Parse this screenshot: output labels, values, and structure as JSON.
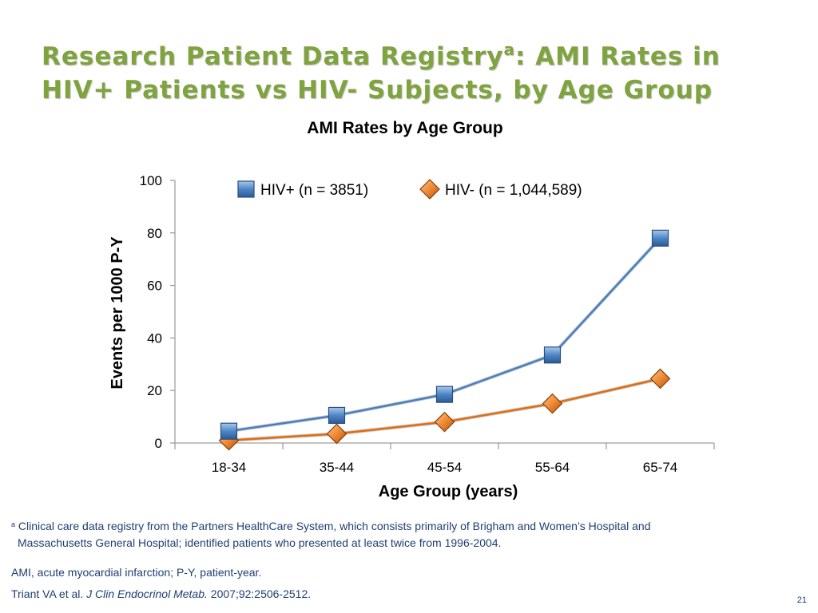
{
  "slide": {
    "title_part1": "Research Patient Data Registry",
    "title_superscript": "a",
    "title_part2": ": AMI Rates in",
    "title_line2": "HIV+ Patients vs HIV- Subjects, by Age Group",
    "footnote_marker": "a",
    "footnote_line1": "Clinical care data registry from the Partners HealthCare System, which consists primarily of Brigham and Women’s Hospital and",
    "footnote_line2": "Massachusetts General Hospital; identified patients who presented at least twice from 1996-2004.",
    "abbreviations": "AMI, acute myocardial infarction; P-Y, patient-year.",
    "citation_authors": "Triant VA et al. ",
    "citation_journal": "J Clin Endocrinol Metab.",
    "citation_details": " 2007;92:2506-2512.",
    "page_number": "21"
  },
  "chart_data": {
    "type": "line",
    "title": "AMI Rates by Age Group",
    "xlabel": "Age Group (years)",
    "ylabel": "Events per 1000 P-Y",
    "categories": [
      "18-34",
      "35-44",
      "45-54",
      "55-64",
      "65-74"
    ],
    "ylim": [
      0,
      100
    ],
    "yticks": [
      0,
      20,
      40,
      60,
      80,
      100
    ],
    "grid": false,
    "legend_position": "top",
    "series": [
      {
        "name": "HIV+ (n = 3851)",
        "values": [
          4.5,
          10.5,
          18.5,
          33.5,
          78
        ],
        "color": "#4a7ebb",
        "marker": "square"
      },
      {
        "name": "HIV- (n = 1,044,589)",
        "values": [
          1,
          3.5,
          8,
          15,
          24.5
        ],
        "color": "#e46c0a",
        "marker": "diamond"
      }
    ]
  }
}
